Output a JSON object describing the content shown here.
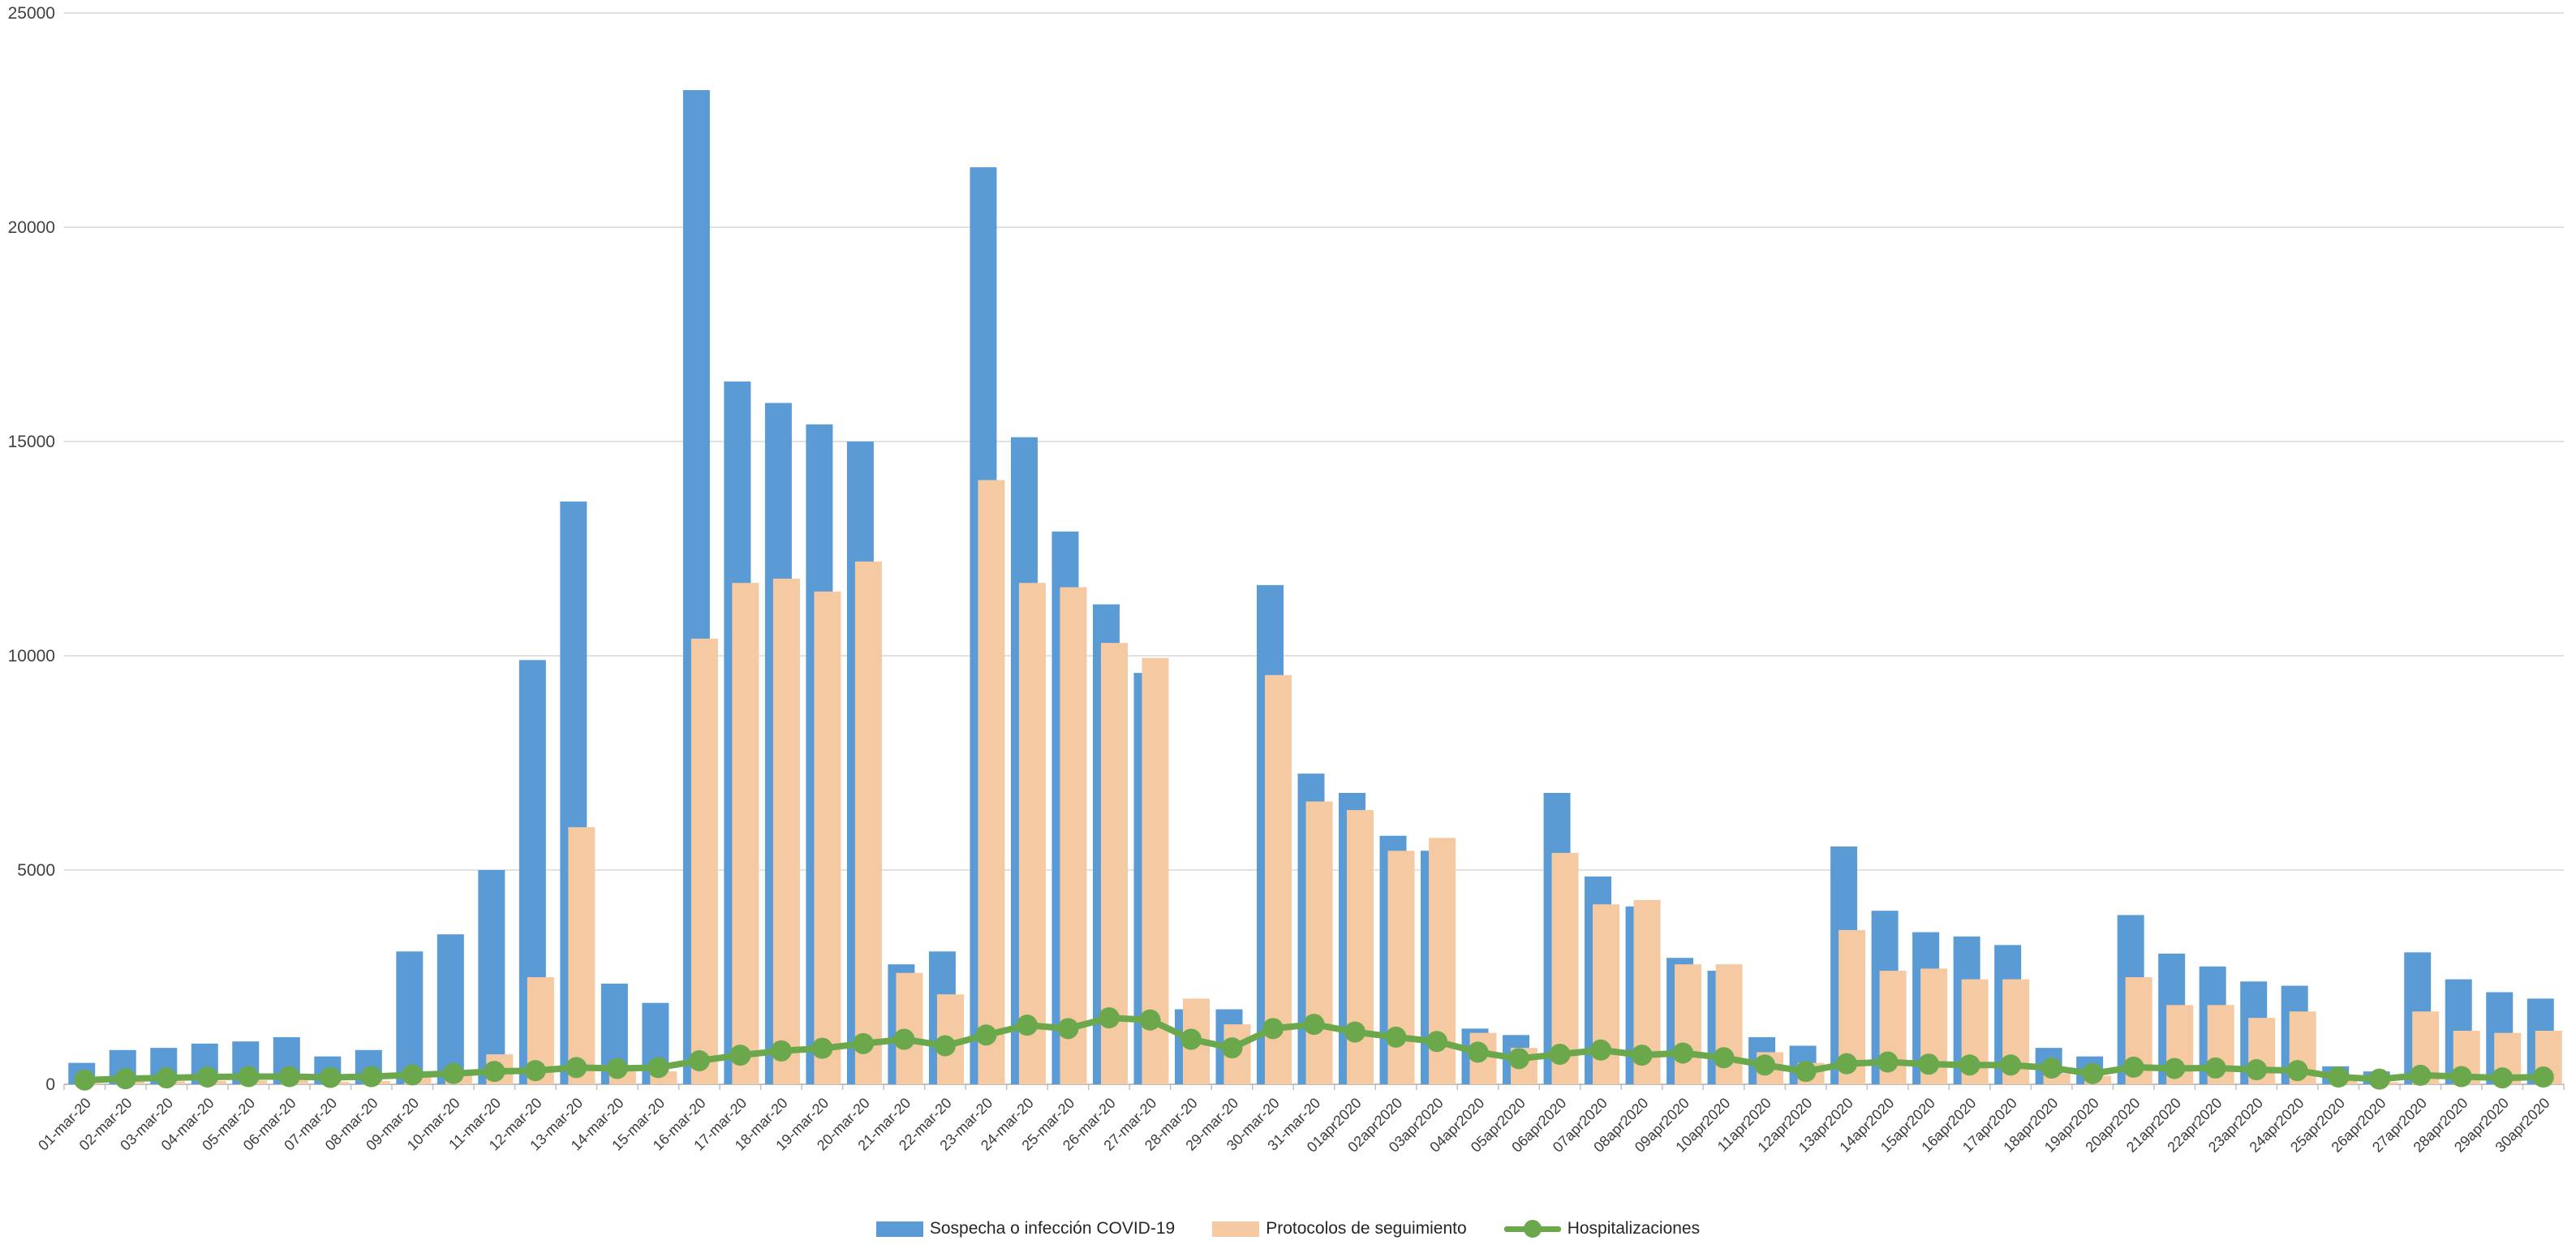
{
  "chart": {
    "y_axis_ticks": [
      "0",
      "5000",
      "10000",
      "15000",
      "20000",
      "25000"
    ],
    "colors": {
      "bar_blue": "#5B9BD5",
      "bar_peach": "#F5C9A2",
      "line_green": "#6BA84C",
      "gridline": "#D9D9D9",
      "axis": "#BFBFBF",
      "text": "#404040"
    }
  },
  "chart_data": {
    "type": "combo",
    "title": "",
    "xlabel": "",
    "ylabel": "",
    "ylim": [
      0,
      25000
    ],
    "y_tick_step": 5000,
    "grid": true,
    "legend_position": "bottom",
    "categories": [
      "01-mar-20",
      "02-mar-20",
      "03-mar-20",
      "04-mar-20",
      "05-mar-20",
      "06-mar-20",
      "07-mar-20",
      "08-mar-20",
      "09-mar-20",
      "10-mar-20",
      "11-mar-20",
      "12-mar-20",
      "13-mar-20",
      "14-mar-20",
      "15-mar-20",
      "16-mar-20",
      "17-mar-20",
      "18-mar-20",
      "19-mar-20",
      "20-mar-20",
      "21-mar-20",
      "22-mar-20",
      "23-mar-20",
      "24-mar-20",
      "25-mar-20",
      "26-mar-20",
      "27-mar-20",
      "28-mar-20",
      "29-mar-20",
      "30-mar-20",
      "31-mar-20",
      "01apr2020",
      "02apr2020",
      "03apr2020",
      "04apr2020",
      "05apr2020",
      "06apr2020",
      "07apr2020",
      "08apr2020",
      "09apr2020",
      "10apr2020",
      "11apr2020",
      "12apr2020",
      "13apr2020",
      "14apr2020",
      "15apr2020",
      "16apr2020",
      "17apr2020",
      "18apr2020",
      "19apr2020",
      "20apr2020",
      "21apr2020",
      "22apr2020",
      "23apr2020",
      "24apr2020",
      "25apr2020",
      "26apr2020",
      "27apr2020",
      "28apr2020",
      "29apr2020",
      "30apr2020"
    ],
    "series": [
      {
        "name": "Sospecha o infección COVID-19",
        "type": "bar",
        "color": "#5B9BD5",
        "values": [
          500,
          800,
          850,
          950,
          1000,
          1100,
          650,
          800,
          3100,
          3500,
          5000,
          9900,
          13600,
          2350,
          1900,
          23200,
          16400,
          15900,
          15400,
          15000,
          2800,
          3100,
          21400,
          15100,
          12900,
          11200,
          9600,
          1750,
          1750,
          11650,
          7250,
          6800,
          5800,
          5450,
          1300,
          1150,
          6800,
          4850,
          4150,
          2950,
          2650,
          1100,
          900,
          5550,
          4050,
          3550,
          3450,
          3250,
          850,
          650,
          3950,
          3050,
          2750,
          2400,
          2300,
          420,
          300,
          3080,
          2450,
          2150,
          2000
        ]
      },
      {
        "name": "Protocolos de seguimiento",
        "type": "bar",
        "color": "#F5C9A2",
        "values": [
          30,
          60,
          70,
          80,
          90,
          100,
          60,
          80,
          200,
          250,
          700,
          2500,
          6000,
          300,
          300,
          10400,
          11700,
          11800,
          11500,
          12200,
          2600,
          2100,
          14100,
          11700,
          11600,
          10300,
          9950,
          2000,
          1400,
          9550,
          6600,
          6400,
          5450,
          5750,
          1200,
          850,
          5400,
          4200,
          4300,
          2800,
          2800,
          750,
          500,
          3600,
          2650,
          2700,
          2450,
          2450,
          250,
          200,
          2500,
          1850,
          1850,
          1550,
          1700,
          80,
          50,
          1700,
          1250,
          1200,
          1250
        ]
      },
      {
        "name": "Hospitalizaciones",
        "type": "line",
        "color": "#6BA84C",
        "values": [
          100,
          130,
          150,
          170,
          180,
          180,
          160,
          180,
          220,
          250,
          300,
          320,
          390,
          370,
          390,
          550,
          680,
          780,
          840,
          950,
          1050,
          900,
          1150,
          1380,
          1300,
          1550,
          1500,
          1050,
          850,
          1300,
          1400,
          1220,
          1100,
          1000,
          750,
          600,
          700,
          800,
          680,
          730,
          620,
          450,
          300,
          480,
          520,
          470,
          450,
          450,
          380,
          250,
          400,
          370,
          380,
          340,
          320,
          170,
          120,
          210,
          180,
          150,
          170
        ]
      }
    ]
  }
}
